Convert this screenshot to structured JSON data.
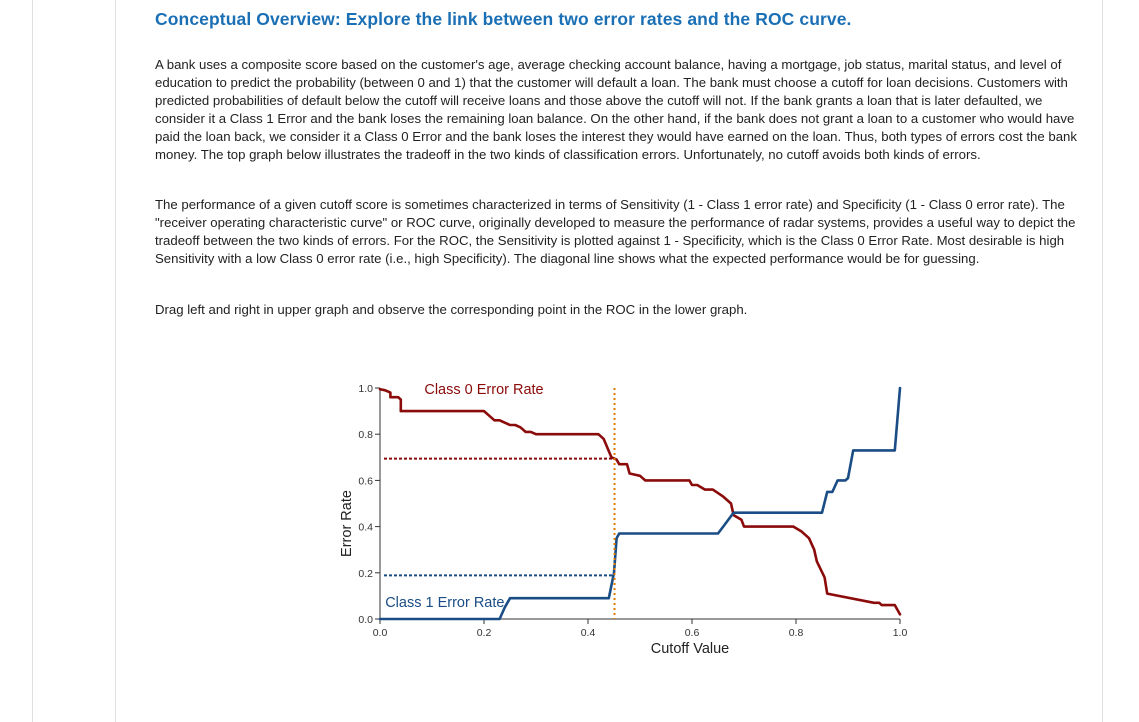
{
  "heading": "Conceptual Overview: Explore the link between two error rates and the ROC curve.",
  "paragraphs": [
    "A bank uses a composite score based on the customer's age, average checking account balance, having a mortgage, job status, marital status, and level of education to predict the probability (between 0 and 1) that the customer will default a loan. The bank must choose a cutoff for loan decisions. Customers with predicted probabilities of default below the cutoff will receive loans and those above the cutoff will not. If the bank grants a loan that is later defaulted, we consider it a Class 1 Error and the bank loses the remaining loan balance. On the other hand, if the bank does not grant a loan to a customer who would have paid the loan back, we consider it a Class 0 Error and the bank loses the interest they would have earned on the loan. Thus, both types of errors cost the bank money. The top graph below illustrates the tradeoff in the two kinds of classification errors. Unfortunately, no cutoff avoids both kinds of errors.",
    "The performance of a given cutoff score is sometimes characterized in terms of Sensitivity (1 - Class 1 error rate) and Specificity (1 - Class 0 error rate). The \"receiver operating characteristic curve\" or ROC curve, originally developed to measure the performance of radar systems, provides a useful way to depict the tradeoff between the two kinds of errors. For the ROC, the Sensitivity is plotted against 1 - Specificity, which is the Class 0 Error Rate. Most desirable is high Sensitivity with a low Class 0 error rate (i.e., high Specificity). The diagonal line shows what the expected performance would be for guessing.",
    "Drag left and right in upper graph and observe the corresponding point in the ROC in the lower graph."
  ],
  "chart_data": {
    "type": "line",
    "title": "",
    "xlabel": "Cutoff Value",
    "ylabel": "Error Rate",
    "xlim": [
      0,
      1
    ],
    "ylim": [
      0,
      1
    ],
    "xticks": [
      0.0,
      0.2,
      0.4,
      0.6,
      0.8,
      1.0
    ],
    "yticks": [
      0.0,
      0.2,
      0.4,
      0.6,
      0.8,
      1.0
    ],
    "xtick_labels": [
      "0.0",
      "0.2",
      "0.4",
      "0.6",
      "0.8",
      "1.0"
    ],
    "ytick_labels": [
      "0.0",
      "0.2",
      "0.4",
      "0.6",
      "0.8",
      "1.0"
    ],
    "cutoff": 0.451,
    "cutoff_color": "#e07b00",
    "series": [
      {
        "name": "Class 0 Error Rate",
        "color": "#8b0a0a",
        "x": [
          0.0,
          0.01,
          0.02,
          0.02,
          0.035,
          0.04,
          0.04,
          0.2,
          0.21,
          0.22,
          0.23,
          0.25,
          0.26,
          0.27,
          0.28,
          0.29,
          0.3,
          0.31,
          0.42,
          0.43,
          0.445,
          0.455,
          0.46,
          0.475,
          0.48,
          0.5,
          0.51,
          0.52,
          0.595,
          0.6,
          0.61,
          0.625,
          0.64,
          0.66,
          0.675,
          0.68,
          0.695,
          0.7,
          0.795,
          0.81,
          0.825,
          0.835,
          0.84,
          0.855,
          0.86,
          0.95,
          0.96,
          0.965,
          0.98,
          0.99,
          1.0
        ],
        "y": [
          0.995,
          0.99,
          0.98,
          0.96,
          0.96,
          0.95,
          0.9,
          0.9,
          0.88,
          0.86,
          0.86,
          0.84,
          0.84,
          0.83,
          0.81,
          0.81,
          0.8,
          0.8,
          0.8,
          0.78,
          0.7,
          0.69,
          0.67,
          0.67,
          0.63,
          0.62,
          0.6,
          0.6,
          0.6,
          0.58,
          0.58,
          0.56,
          0.56,
          0.53,
          0.5,
          0.45,
          0.43,
          0.4,
          0.4,
          0.38,
          0.35,
          0.3,
          0.25,
          0.18,
          0.11,
          0.07,
          0.07,
          0.06,
          0.06,
          0.06,
          0.02
        ],
        "label_pos": "top-center"
      },
      {
        "name": "Class 1 Error Rate",
        "color": "#1a4c85",
        "x": [
          0.0,
          0.22,
          0.23,
          0.24,
          0.25,
          0.26,
          0.44,
          0.45,
          0.455,
          0.46,
          0.475,
          0.5,
          0.52,
          0.63,
          0.635,
          0.64,
          0.65,
          0.66,
          0.68,
          0.7,
          0.74,
          0.75,
          0.76,
          0.85,
          0.86,
          0.87,
          0.88,
          0.895,
          0.9,
          0.91,
          0.93,
          0.945,
          0.95,
          0.97,
          0.98,
          0.985,
          0.99,
          1.0
        ],
        "y": [
          0.0,
          0.0,
          0.0,
          0.05,
          0.09,
          0.09,
          0.09,
          0.2,
          0.35,
          0.37,
          0.37,
          0.37,
          0.37,
          0.37,
          0.37,
          0.37,
          0.37,
          0.4,
          0.46,
          0.46,
          0.46,
          0.46,
          0.46,
          0.46,
          0.55,
          0.55,
          0.6,
          0.6,
          0.61,
          0.73,
          0.73,
          0.73,
          0.73,
          0.73,
          0.73,
          0.73,
          0.73,
          1.0
        ],
        "label_pos": "bottom-left"
      }
    ]
  }
}
